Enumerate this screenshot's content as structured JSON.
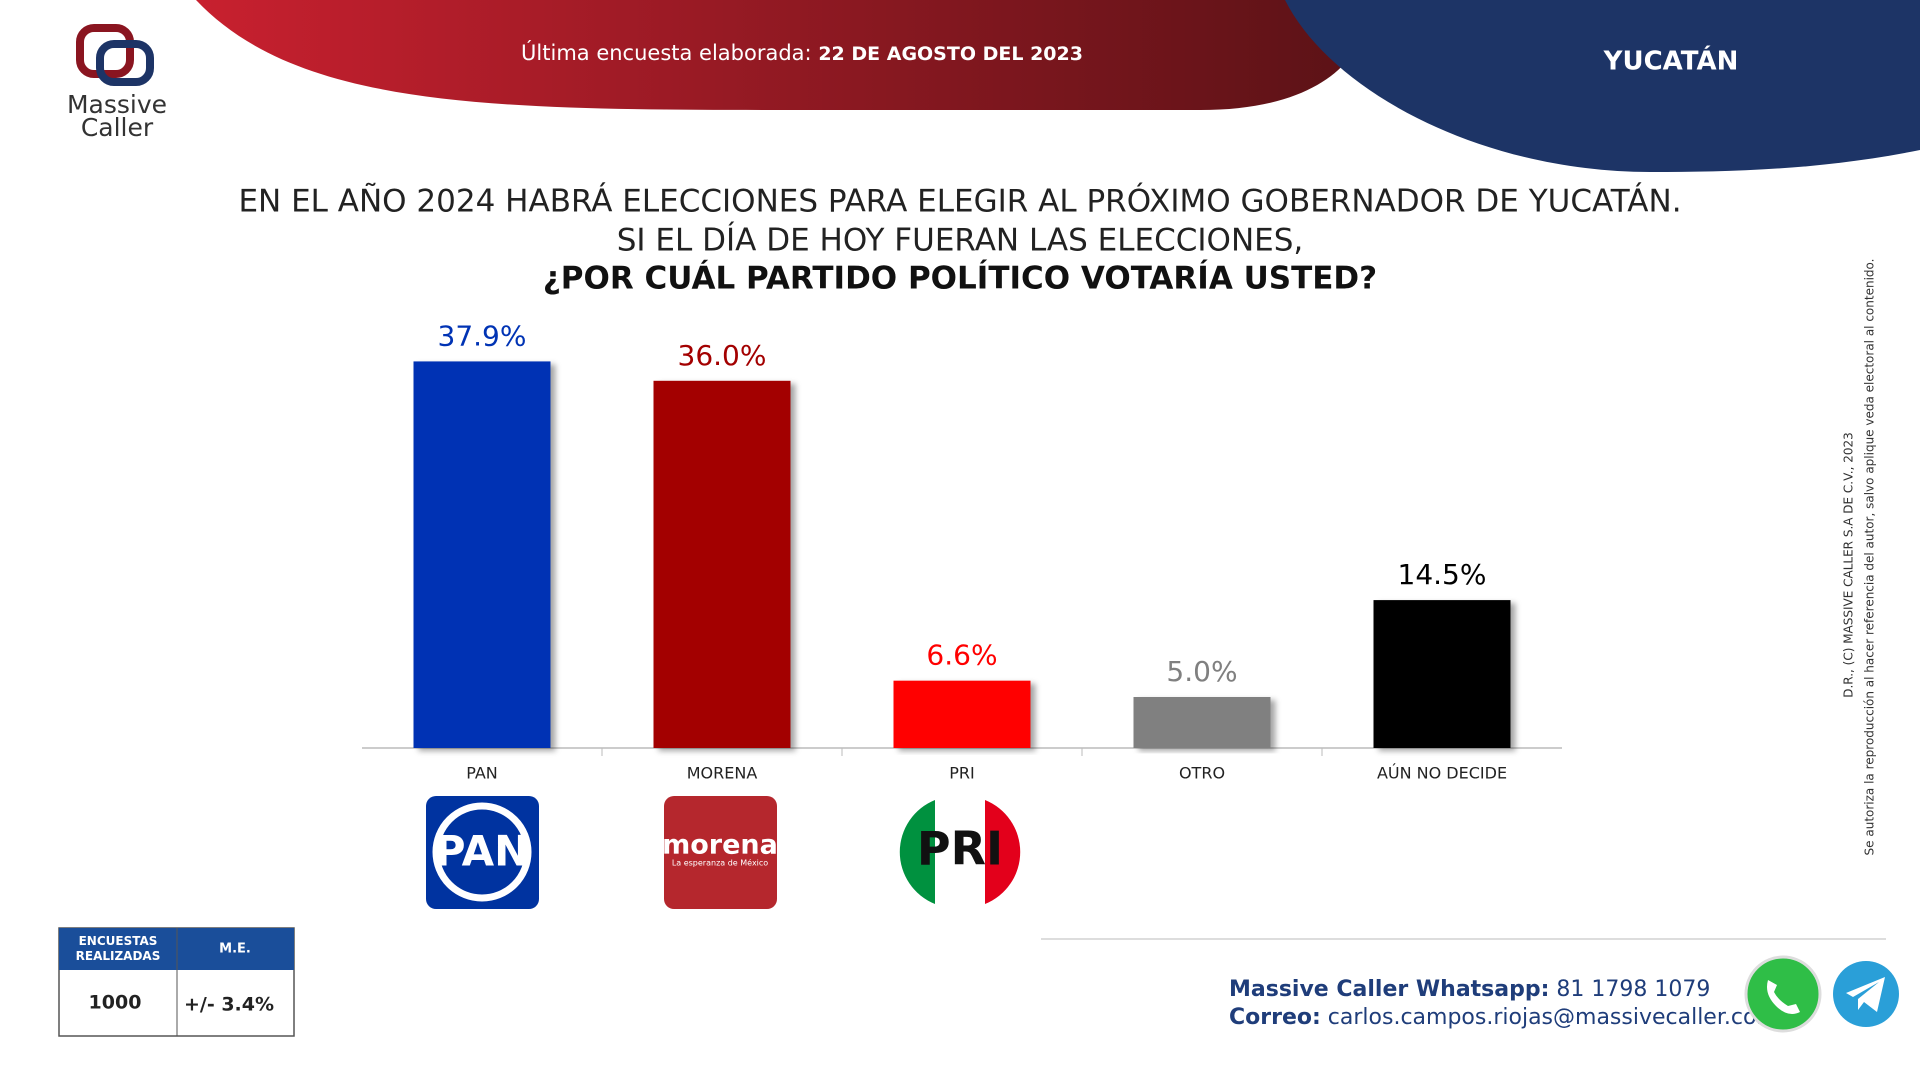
{
  "header": {
    "survey_label": "Última encuesta elaborada:",
    "survey_date": "22 DE AGOSTO DEL 2023",
    "region": "YUCATÁN"
  },
  "logo": {
    "line1": "Massive",
    "line2": "Caller"
  },
  "chart_data": {
    "type": "bar",
    "title_lines": [
      "EN EL AÑO 2024 HABRÁ ELECCIONES PARA ELEGIR AL PRÓXIMO GOBERNADOR DE YUCATÁN.",
      "SI EL DÍA DE HOY FUERAN LAS ELECCIONES,",
      "¿POR CUÁL PARTIDO POLÍTICO VOTARÍA USTED?"
    ],
    "categories": [
      "PAN",
      "MORENA",
      "PRI",
      "OTRO",
      "AÚN NO DECIDE"
    ],
    "values": [
      37.9,
      36.0,
      6.6,
      5.0,
      14.5
    ],
    "value_labels": [
      "37.9%",
      "36.0%",
      "6.6%",
      "5.0%",
      "14.5%"
    ],
    "colors": [
      "#0033b4",
      "#a30000",
      "#ff0000",
      "#808080",
      "#000000"
    ]
  },
  "party_logos": {
    "pan": "PAN",
    "morena": "morena",
    "morena_tagline": "La esperanza de México",
    "pri": "PRI"
  },
  "table": {
    "headers": [
      "ENCUESTAS REALIZADAS",
      "M.E."
    ],
    "row": [
      "1000",
      "+/- 3.4%"
    ]
  },
  "footer": {
    "whatsapp_label": "Massive Caller Whatsapp:",
    "whatsapp": "81 1798 1079",
    "email_label": "Correo:",
    "email": "carlos.campos.riojas@massivecaller.com"
  },
  "copyright": [
    "D.R., (C) MASSIVE CALLER S.A DE C.V., 2023",
    "Se autoriza la reproducción al hacer referencia del autor, salvo aplique veda electoral al contenido."
  ]
}
